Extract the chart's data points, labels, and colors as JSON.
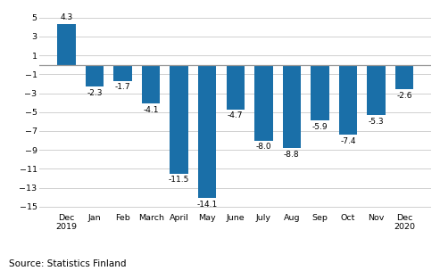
{
  "categories": [
    "Dec\n2019",
    "Jan",
    "Feb",
    "March",
    "April",
    "May",
    "June",
    "July",
    "Aug",
    "Sep",
    "Oct",
    "Nov",
    "Dec\n2020"
  ],
  "values": [
    4.3,
    -2.3,
    -1.7,
    -4.1,
    -11.5,
    -14.1,
    -4.7,
    -8.0,
    -8.8,
    -5.9,
    -7.4,
    -5.3,
    -2.6
  ],
  "bar_color": "#1a6fa8",
  "ylim": [
    -15.5,
    6.0
  ],
  "yticks": [
    5,
    3,
    1,
    -1,
    -3,
    -5,
    -7,
    -9,
    -11,
    -13,
    -15
  ],
  "source_text": "Source: Statistics Finland",
  "background_color": "#ffffff",
  "grid_color": "#d0d0d0",
  "zero_line_color": "#999999",
  "label_fontsize": 6.5,
  "tick_fontsize": 6.8,
  "source_fontsize": 7.5,
  "bar_width": 0.65
}
